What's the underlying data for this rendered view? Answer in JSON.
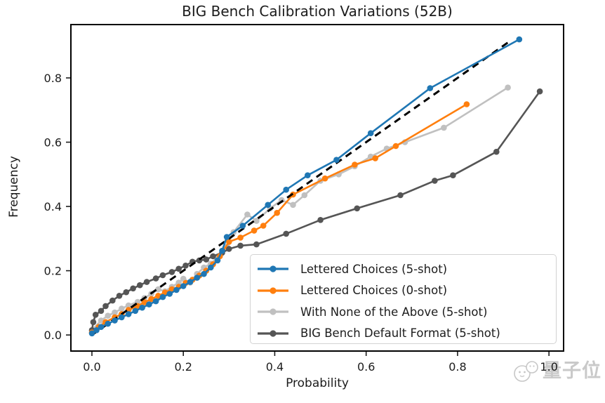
{
  "figure": {
    "title": "BIG Bench Calibration Variations (52B)",
    "xlabel": "Probability",
    "ylabel": "Frequency"
  },
  "watermark": {
    "text": "量子位"
  },
  "chart_data": {
    "type": "line",
    "title": "BIG Bench Calibration Variations (52B)",
    "xlabel": "Probability",
    "ylabel": "Frequency",
    "xlim": [
      -0.046,
      1.032
    ],
    "ylim": [
      -0.05,
      0.966
    ],
    "x_ticks": [
      0.0,
      0.2,
      0.4,
      0.6,
      0.8,
      1.0
    ],
    "y_ticks": [
      0.0,
      0.2,
      0.4,
      0.6,
      0.8
    ],
    "grid": false,
    "legend_position": "lower right",
    "reference_line": {
      "style": "dashed",
      "color": "#000000",
      "points": [
        [
          0.0,
          0.0
        ],
        [
          0.91,
          0.91
        ]
      ]
    },
    "series": [
      {
        "name": "Lettered Choices (5-shot)",
        "color": "#1f77b4",
        "points": [
          [
            0.0,
            0.005
          ],
          [
            0.01,
            0.015
          ],
          [
            0.02,
            0.025
          ],
          [
            0.035,
            0.035
          ],
          [
            0.05,
            0.045
          ],
          [
            0.065,
            0.055
          ],
          [
            0.08,
            0.065
          ],
          [
            0.095,
            0.075
          ],
          [
            0.11,
            0.085
          ],
          [
            0.125,
            0.095
          ],
          [
            0.14,
            0.105
          ],
          [
            0.155,
            0.118
          ],
          [
            0.17,
            0.128
          ],
          [
            0.185,
            0.14
          ],
          [
            0.2,
            0.152
          ],
          [
            0.215,
            0.165
          ],
          [
            0.23,
            0.178
          ],
          [
            0.245,
            0.19
          ],
          [
            0.26,
            0.21
          ],
          [
            0.275,
            0.232
          ],
          [
            0.285,
            0.262
          ],
          [
            0.295,
            0.305
          ],
          [
            0.33,
            0.34
          ],
          [
            0.385,
            0.405
          ],
          [
            0.425,
            0.452
          ],
          [
            0.472,
            0.497
          ],
          [
            0.535,
            0.545
          ],
          [
            0.61,
            0.628
          ],
          [
            0.74,
            0.768
          ],
          [
            0.935,
            0.92
          ]
        ]
      },
      {
        "name": "Lettered Choices (0-shot)",
        "color": "#ff7f0e",
        "points": [
          [
            0.0,
            0.008
          ],
          [
            0.015,
            0.025
          ],
          [
            0.03,
            0.04
          ],
          [
            0.05,
            0.055
          ],
          [
            0.065,
            0.065
          ],
          [
            0.08,
            0.078
          ],
          [
            0.1,
            0.09
          ],
          [
            0.115,
            0.102
          ],
          [
            0.13,
            0.112
          ],
          [
            0.145,
            0.122
          ],
          [
            0.16,
            0.132
          ],
          [
            0.175,
            0.142
          ],
          [
            0.19,
            0.15
          ],
          [
            0.205,
            0.162
          ],
          [
            0.22,
            0.172
          ],
          [
            0.235,
            0.185
          ],
          [
            0.25,
            0.2
          ],
          [
            0.265,
            0.22
          ],
          [
            0.28,
            0.245
          ],
          [
            0.3,
            0.29
          ],
          [
            0.325,
            0.303
          ],
          [
            0.355,
            0.325
          ],
          [
            0.375,
            0.34
          ],
          [
            0.405,
            0.38
          ],
          [
            0.44,
            0.437
          ],
          [
            0.51,
            0.487
          ],
          [
            0.575,
            0.53
          ],
          [
            0.62,
            0.55
          ],
          [
            0.665,
            0.588
          ],
          [
            0.82,
            0.718
          ]
        ]
      },
      {
        "name": "With None of the Above (5-shot)",
        "color": "#c0c0c0",
        "points": [
          [
            0.0,
            0.015
          ],
          [
            0.02,
            0.045
          ],
          [
            0.035,
            0.06
          ],
          [
            0.05,
            0.07
          ],
          [
            0.065,
            0.082
          ],
          [
            0.08,
            0.092
          ],
          [
            0.1,
            0.103
          ],
          [
            0.115,
            0.115
          ],
          [
            0.13,
            0.128
          ],
          [
            0.145,
            0.142
          ],
          [
            0.16,
            0.136
          ],
          [
            0.175,
            0.15
          ],
          [
            0.19,
            0.163
          ],
          [
            0.2,
            0.175
          ],
          [
            0.215,
            0.163
          ],
          [
            0.23,
            0.19
          ],
          [
            0.245,
            0.21
          ],
          [
            0.26,
            0.222
          ],
          [
            0.275,
            0.242
          ],
          [
            0.295,
            0.275
          ],
          [
            0.31,
            0.32
          ],
          [
            0.34,
            0.375
          ],
          [
            0.36,
            0.355
          ],
          [
            0.39,
            0.394
          ],
          [
            0.415,
            0.42
          ],
          [
            0.44,
            0.405
          ],
          [
            0.465,
            0.435
          ],
          [
            0.5,
            0.48
          ],
          [
            0.54,
            0.5
          ],
          [
            0.575,
            0.525
          ],
          [
            0.61,
            0.555
          ],
          [
            0.645,
            0.58
          ],
          [
            0.685,
            0.6
          ],
          [
            0.77,
            0.645
          ],
          [
            0.91,
            0.77
          ]
        ]
      },
      {
        "name": "BIG Bench Default Format (5-shot)",
        "color": "#555555",
        "points": [
          [
            0.0,
            0.015
          ],
          [
            0.003,
            0.04
          ],
          [
            0.008,
            0.063
          ],
          [
            0.02,
            0.075
          ],
          [
            0.03,
            0.09
          ],
          [
            0.045,
            0.107
          ],
          [
            0.06,
            0.122
          ],
          [
            0.075,
            0.133
          ],
          [
            0.09,
            0.145
          ],
          [
            0.105,
            0.155
          ],
          [
            0.12,
            0.165
          ],
          [
            0.14,
            0.176
          ],
          [
            0.155,
            0.186
          ],
          [
            0.175,
            0.196
          ],
          [
            0.19,
            0.206
          ],
          [
            0.205,
            0.216
          ],
          [
            0.22,
            0.228
          ],
          [
            0.235,
            0.232
          ],
          [
            0.25,
            0.235
          ],
          [
            0.265,
            0.245
          ],
          [
            0.285,
            0.256
          ],
          [
            0.3,
            0.268
          ],
          [
            0.325,
            0.278
          ],
          [
            0.36,
            0.282
          ],
          [
            0.425,
            0.315
          ],
          [
            0.5,
            0.358
          ],
          [
            0.58,
            0.394
          ],
          [
            0.675,
            0.435
          ],
          [
            0.75,
            0.48
          ],
          [
            0.79,
            0.497
          ],
          [
            0.885,
            0.57
          ],
          [
            0.98,
            0.758
          ]
        ]
      }
    ]
  }
}
